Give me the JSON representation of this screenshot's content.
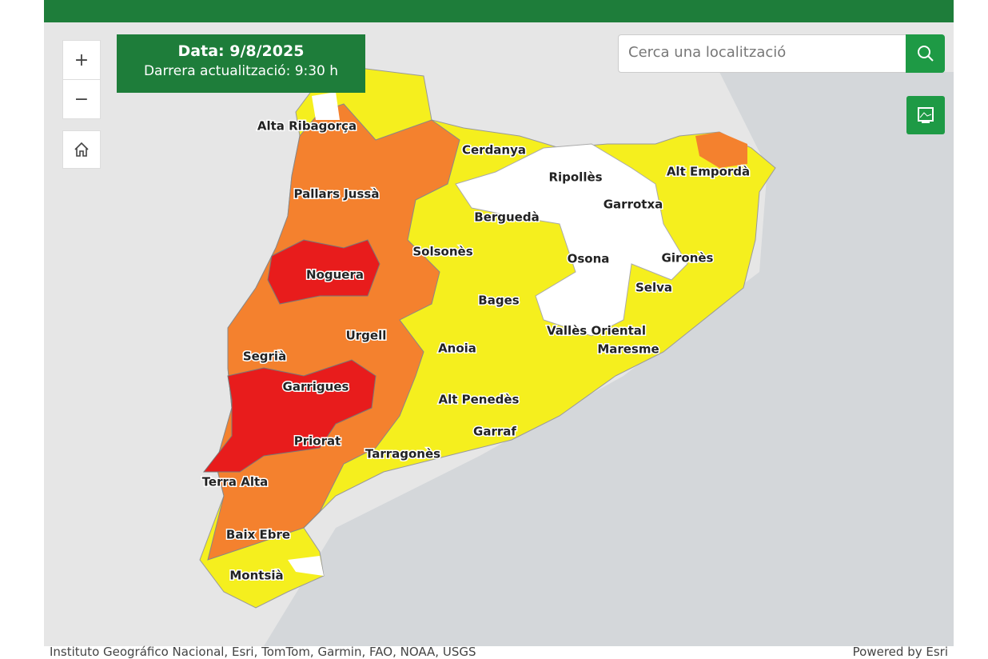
{
  "info_box": {
    "date": "Data: 9/8/2025",
    "updated": "Darrera actualització: 9:30 h"
  },
  "search": {
    "placeholder": "Cerca una localització"
  },
  "zoom": {
    "in": "+",
    "out": "−"
  },
  "regions": [
    "Alta Ribagorça",
    "Cerdanya",
    "Alt Empordà",
    "Ripollès",
    "Pallars Jussà",
    "Garrotxa",
    "Berguedà",
    "Solsonès",
    "Osona",
    "Gironès",
    "Noguera",
    "Selva",
    "Bages",
    "Urgell",
    "Vallès Oriental",
    "Anoia",
    "Maresme",
    "Segrià",
    "Garrigues",
    "Alt Penedès",
    "Garraf",
    "Priorat",
    "Tarragonès",
    "Terra Alta",
    "Baix Ebre",
    "Montsià"
  ],
  "attribution": {
    "sources": "Instituto Geográfico Nacional, Esri, TomTom, Garmin, FAO, NOAA, USGS",
    "powered": "Powered by Esri"
  }
}
